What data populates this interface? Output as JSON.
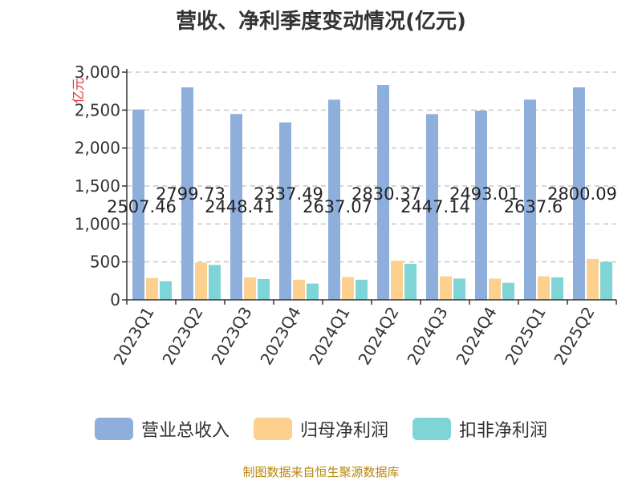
{
  "chart_data": {
    "type": "bar",
    "title": "营收、净利季度变动情况(亿元)",
    "ylabel": "亿元",
    "ylim": [
      0,
      3000
    ],
    "yticks": [
      "0",
      "500",
      "1,000",
      "1,500",
      "2,000",
      "2,500",
      "3,000"
    ],
    "categories": [
      "2023Q1",
      "2023Q2",
      "2023Q3",
      "2023Q4",
      "2024Q1",
      "2024Q2",
      "2024Q3",
      "2024Q4",
      "2025Q1",
      "2025Q2"
    ],
    "series": [
      {
        "name": "营业总收入",
        "color": "#8eaedb",
        "values": [
          2507.46,
          2799.73,
          2448.41,
          2337.49,
          2637.07,
          2830.37,
          2447.14,
          2493.01,
          2637.6,
          2800.09
        ],
        "labels": [
          "2507.46",
          "2799.73",
          "2448.41",
          "2337.49",
          "2637.07",
          "2830.37",
          "2447.14",
          "2493.01",
          "2637.6",
          "2800.09"
        ]
      },
      {
        "name": "归母净利润",
        "color": "#fcd08f",
        "values": [
          285,
          490,
          295,
          265,
          300,
          515,
          310,
          280,
          310,
          540
        ]
      },
      {
        "name": "扣非净利润",
        "color": "#7fd4d6",
        "values": [
          245,
          460,
          275,
          215,
          265,
          475,
          280,
          225,
          295,
          500
        ]
      }
    ],
    "grid": true,
    "legend": "bottom"
  },
  "source": "制图数据来自恒生聚源数据库"
}
